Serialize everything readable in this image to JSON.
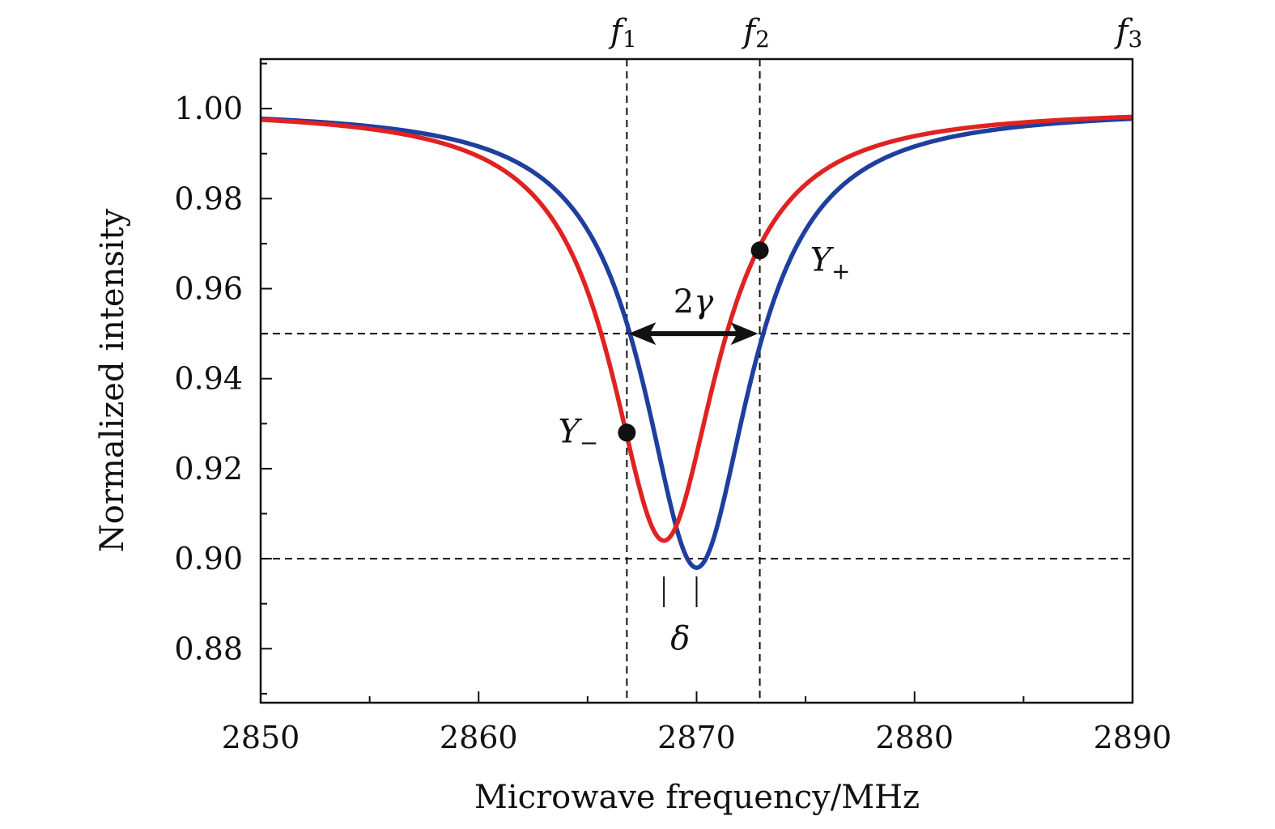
{
  "chart_data": {
    "type": "line",
    "xlabel": "Microwave frequency/MHz",
    "ylabel": "Normalized intensity",
    "xlim": [
      2850,
      2890
    ],
    "ylim": [
      0.868,
      1.011
    ],
    "x_ticks": [
      2850,
      2860,
      2870,
      2880,
      2890
    ],
    "x_tick_labels": [
      "2850",
      "2860",
      "2870",
      "2880",
      "2890"
    ],
    "y_ticks": [
      0.88,
      0.9,
      0.92,
      0.94,
      0.96,
      0.98,
      1.0
    ],
    "y_tick_labels": [
      "0.88",
      "0.90",
      "0.92",
      "0.94",
      "0.96",
      "0.98",
      "1.00"
    ],
    "grid": false,
    "series": [
      {
        "color": "#1f3f9e",
        "center": 2870.0,
        "min": 0.898,
        "hwhm": 3.0
      },
      {
        "color": "#e02222",
        "center": 2868.5,
        "min": 0.904,
        "hwhm": 3.0
      }
    ],
    "reference_lines": {
      "vertical": [
        2866.8,
        2872.9
      ],
      "horizontal": [
        0.95,
        0.9
      ]
    },
    "markers": [
      {
        "label": "Y",
        "sub": "−",
        "x": 2866.8,
        "y": 0.928
      },
      {
        "label": "Y",
        "sub": "+",
        "x": 2872.9,
        "y": 0.9685
      }
    ],
    "top_labels": [
      {
        "label": "f",
        "sub": "1",
        "x": 2866.8
      },
      {
        "label": "f",
        "sub": "2",
        "x": 2872.9
      },
      {
        "label": "f",
        "sub": "3",
        "x": 2890
      }
    ],
    "width_annotation": {
      "label": "2γ",
      "x1": 2866.8,
      "x2": 2872.9,
      "y": 0.95
    },
    "shift_annotation": {
      "label": "δ",
      "x1": 2868.5,
      "x2": 2870.0
    }
  }
}
